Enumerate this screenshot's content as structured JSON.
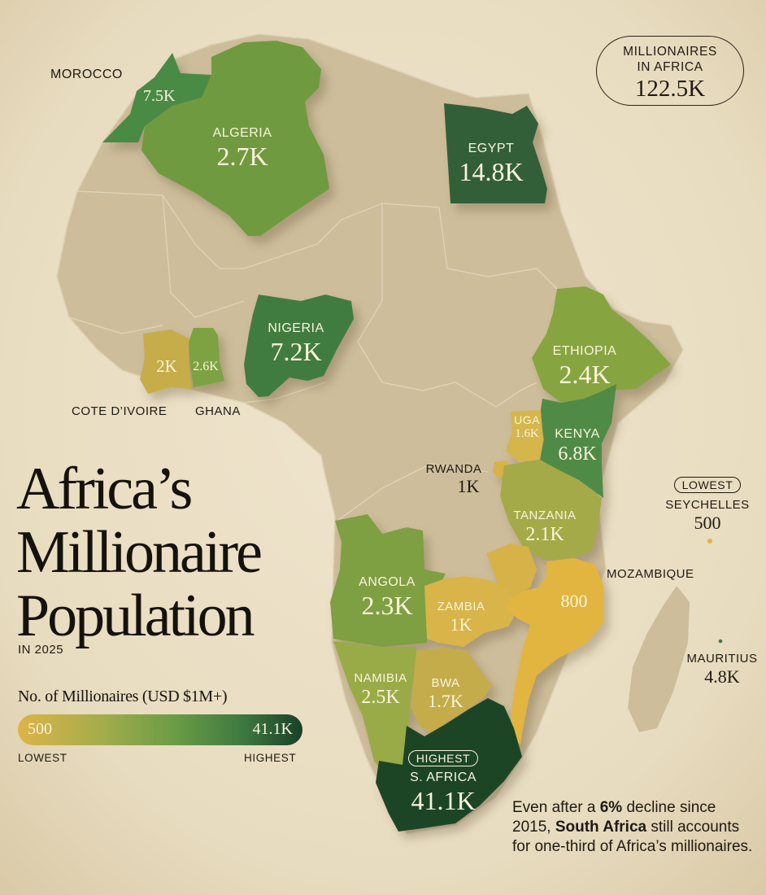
{
  "header": {
    "total_label": "MILLIONAIRES IN AFRICA",
    "total_value": "122.5K"
  },
  "title": {
    "line1": "Africa’s",
    "line2": "Millionaire",
    "line3": "Population",
    "subtitle": "IN 2025"
  },
  "legend": {
    "title": "No. of Millionaires (USD $1M+)",
    "min_value": "500",
    "max_value": "41.1K",
    "low_label": "LOWEST",
    "high_label": "HIGHEST",
    "colors": [
      "#dcb448",
      "#a8ad4c",
      "#6b9c45",
      "#3f7b41",
      "#1b4027"
    ]
  },
  "countries": {
    "morocco": {
      "name": "MOROCCO",
      "value": "7.5K",
      "millionaires": 7500
    },
    "algeria": {
      "name": "ALGERIA",
      "value": "2.7K",
      "millionaires": 2700
    },
    "egypt": {
      "name": "EGYPT",
      "value": "14.8K",
      "millionaires": 14800
    },
    "nigeria": {
      "name": "NIGERIA",
      "value": "7.2K",
      "millionaires": 7200
    },
    "cote_divoire": {
      "name": "COTE D’IVOIRE",
      "value": "2K",
      "millionaires": 2000
    },
    "ghana": {
      "name": "GHANA",
      "value": "2.6K",
      "millionaires": 2600
    },
    "ethiopia": {
      "name": "ETHIOPIA",
      "value": "2.4K",
      "millionaires": 2400
    },
    "uganda": {
      "name": "UGA",
      "value": "1.6K",
      "millionaires": 1600
    },
    "kenya": {
      "name": "KENYA",
      "value": "6.8K",
      "millionaires": 6800
    },
    "rwanda": {
      "name": "RWANDA",
      "value": "1K",
      "millionaires": 1000
    },
    "tanzania": {
      "name": "TANZANIA",
      "value": "2.1K",
      "millionaires": 2100
    },
    "angola": {
      "name": "ANGOLA",
      "value": "2.3K",
      "millionaires": 2300
    },
    "zambia": {
      "name": "ZAMBIA",
      "value": "1K",
      "millionaires": 1000
    },
    "mozambique": {
      "name": "MOZAMBIQUE",
      "value": "800",
      "millionaires": 800
    },
    "namibia": {
      "name": "NAMIBIA",
      "value": "2.5K",
      "millionaires": 2500
    },
    "botswana": {
      "name": "BWA",
      "value": "1.7K",
      "millionaires": 1700
    },
    "south_africa": {
      "name": "S. AFRICA",
      "value": "41.1K",
      "millionaires": 41100,
      "badge": "HIGHEST"
    },
    "seychelles": {
      "name": "SEYCHELLES",
      "value": "500",
      "millionaires": 500,
      "badge": "LOWEST"
    },
    "mauritius": {
      "name": "MAURITIUS",
      "value": "4.8K",
      "millionaires": 4800
    }
  },
  "note": {
    "part1": "Even after a ",
    "highlight1": "6%",
    "part2": " decline since 2015, ",
    "highlight2": "South Africa",
    "part3": " still accounts for one-third of Africa’s millionaires."
  }
}
